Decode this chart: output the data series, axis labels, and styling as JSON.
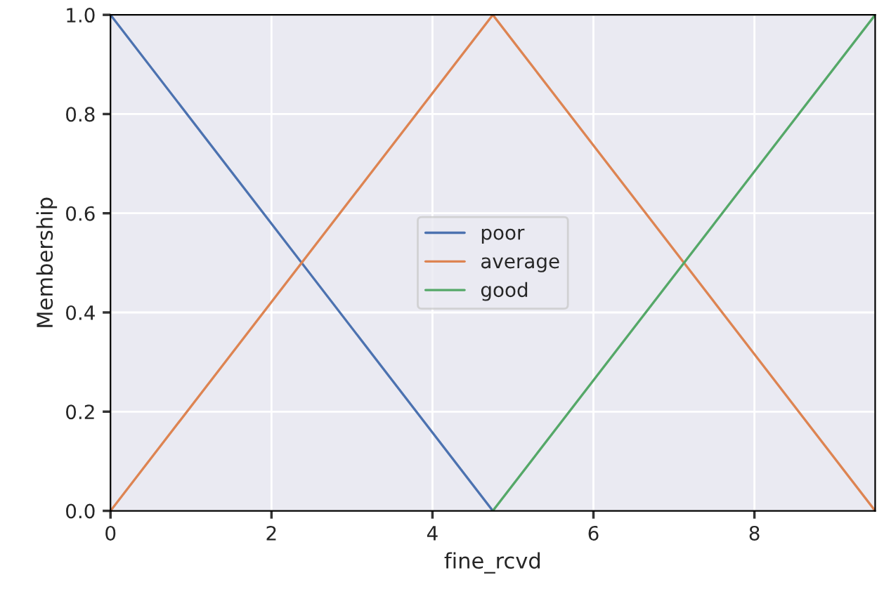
{
  "chart_data": {
    "type": "line",
    "xlabel": "fine_rcvd",
    "ylabel": "Membership",
    "x": [
      0,
      4.75,
      9.5
    ],
    "series": [
      {
        "name": "poor",
        "color": "#4c72b0",
        "values": [
          1,
          0
        ],
        "x": [
          0,
          4.75
        ]
      },
      {
        "name": "average",
        "color": "#dd8452",
        "values": [
          0,
          1,
          0
        ]
      },
      {
        "name": "good",
        "color": "#55a868",
        "values": [
          0,
          1
        ],
        "x": [
          4.75,
          9.5
        ]
      }
    ],
    "xlim": [
      0,
      9.5
    ],
    "ylim": [
      0,
      1
    ],
    "xticks": [
      0,
      2,
      4,
      6,
      8
    ],
    "yticks": [
      {
        "value": 0,
        "label": "0.0"
      },
      0.2,
      0.4,
      0.6,
      0.8,
      {
        "value": 1,
        "label": "1.0"
      }
    ],
    "grid": true,
    "legend": "center",
    "marker": "none",
    "line_style": "solid"
  }
}
